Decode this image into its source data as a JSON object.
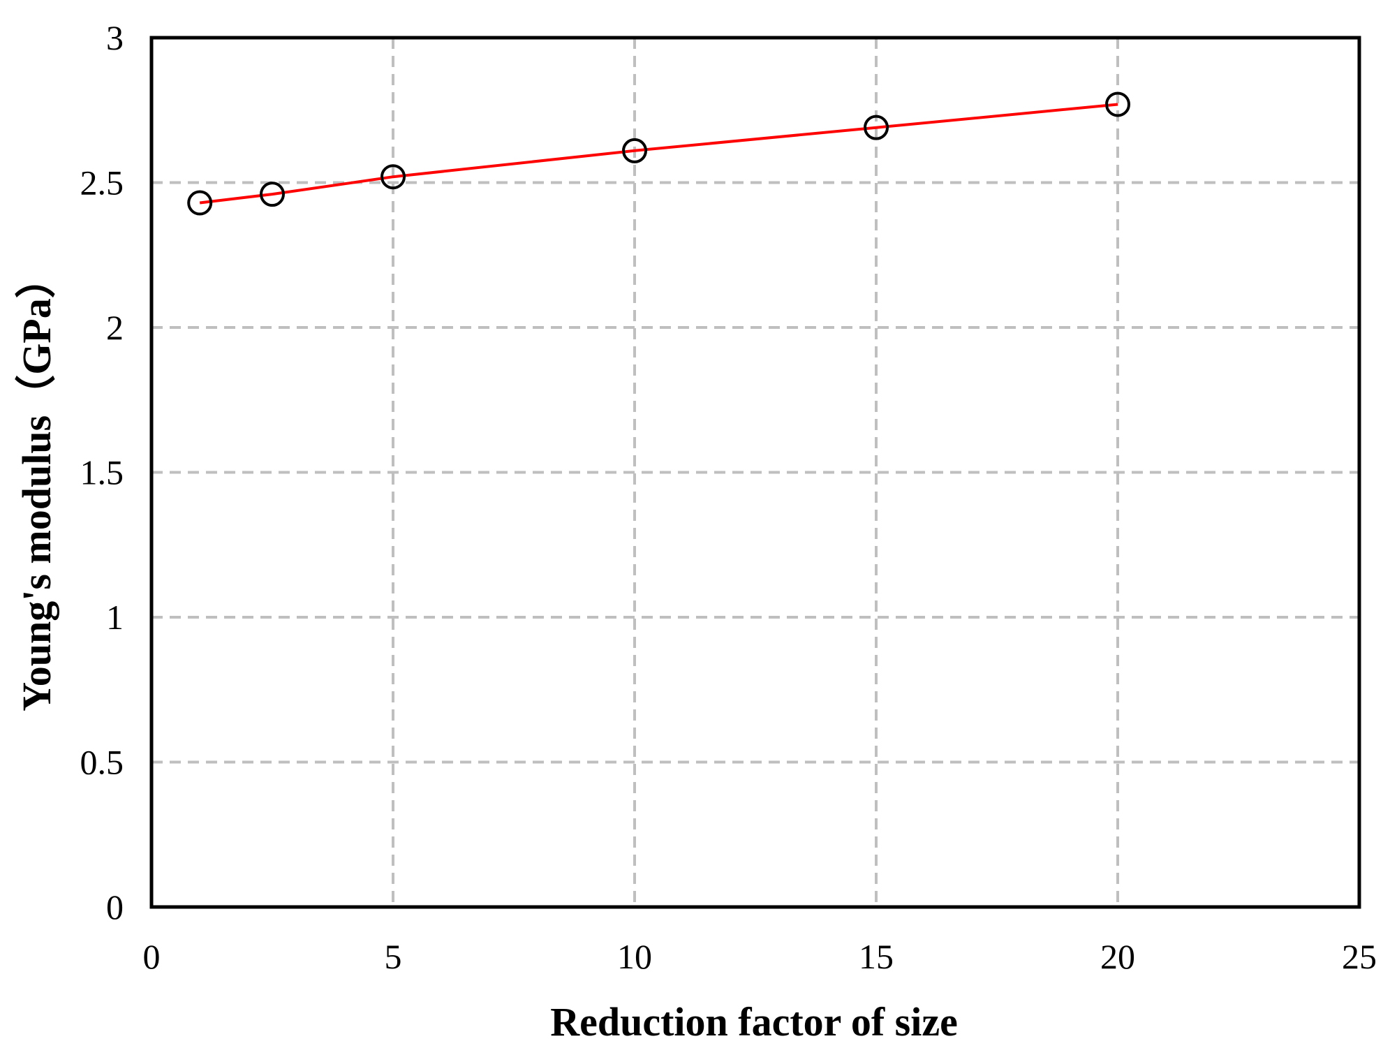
{
  "chart_data": {
    "type": "line",
    "title": "",
    "xlabel": "Reduction factor of size",
    "ylabel": "Young's modulus（GPa）",
    "xlim": [
      0,
      25
    ],
    "ylim": [
      0,
      3
    ],
    "x_ticks": [
      "0",
      "5",
      "10",
      "15",
      "20",
      "25"
    ],
    "y_ticks": [
      "0",
      "0.5",
      "1",
      "1.5",
      "2",
      "2.5",
      "3"
    ],
    "grid": true,
    "grid_style": "dashed",
    "series": [
      {
        "x": [
          1,
          2.5,
          5,
          10,
          15,
          20
        ],
        "y": [
          2.43,
          2.46,
          2.52,
          2.61,
          2.69,
          2.77
        ],
        "line_color": "#ff0000",
        "marker": "open-circle",
        "marker_color": "#000000"
      }
    ]
  }
}
